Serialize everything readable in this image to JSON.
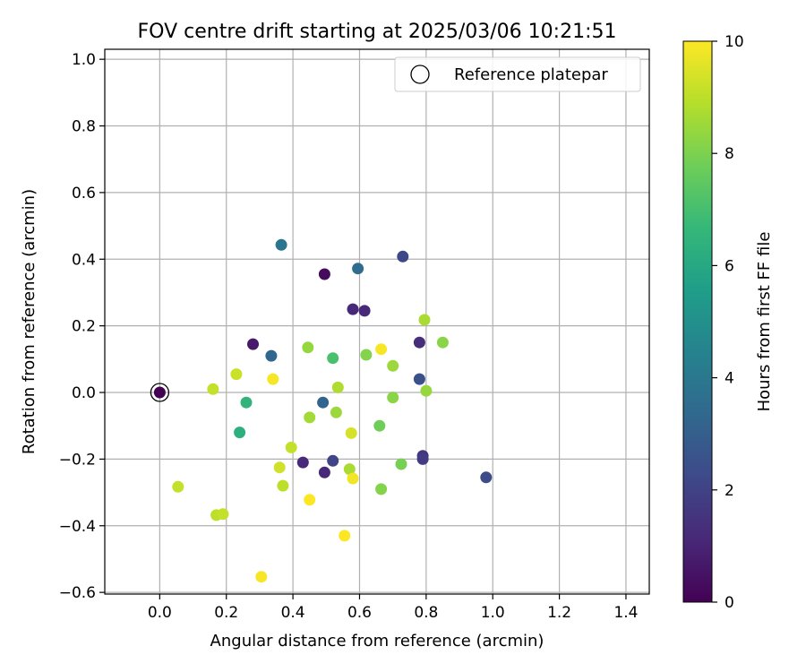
{
  "chart_data": {
    "type": "scatter",
    "title": "FOV centre drift starting at 2025/03/06 10:21:51",
    "xlabel": "Angular distance from reference (arcmin)",
    "ylabel": "Rotation from reference (arcmin)",
    "xlim": [
      -0.165,
      1.47
    ],
    "ylim": [
      -0.605,
      1.03
    ],
    "xticks": [
      0.0,
      0.2,
      0.4,
      0.6,
      0.8,
      1.0,
      1.2,
      1.4
    ],
    "xtick_labels": [
      "0.0",
      "0.2",
      "0.4",
      "0.6",
      "0.8",
      "1.0",
      "1.2",
      "1.4"
    ],
    "yticks": [
      -0.6,
      -0.4,
      -0.2,
      0.0,
      0.2,
      0.4,
      0.6,
      0.8,
      1.0
    ],
    "ytick_labels": [
      "−0.6",
      "−0.4",
      "−0.2",
      "0.0",
      "0.2",
      "0.4",
      "0.6",
      "0.8",
      "1.0"
    ],
    "grid": true,
    "legend": {
      "placement": "upper-right",
      "entries": [
        "Reference platepar"
      ]
    },
    "reference_point": {
      "x": 0.0,
      "y": 0.0
    },
    "colorbar": {
      "label": "Hours from first FF file",
      "range": [
        0,
        10
      ],
      "ticks": [
        0,
        2,
        4,
        6,
        8,
        10
      ],
      "tick_labels": [
        "0",
        "2",
        "4",
        "6",
        "8",
        "10"
      ],
      "colormap": "viridis",
      "stops": [
        "#440154",
        "#482878",
        "#3e4989",
        "#31688e",
        "#26828e",
        "#1f9e89",
        "#35b779",
        "#6ece58",
        "#b5de2b",
        "#fde725"
      ]
    },
    "points": [
      {
        "x": 0.0,
        "y": 0.0,
        "t": 0.0
      },
      {
        "x": 0.28,
        "y": 0.145,
        "t": 0.7
      },
      {
        "x": 0.335,
        "y": 0.11,
        "t": 3.3
      },
      {
        "x": 0.365,
        "y": 0.443,
        "t": 3.9
      },
      {
        "x": 0.495,
        "y": 0.355,
        "t": 0.3
      },
      {
        "x": 0.595,
        "y": 0.372,
        "t": 3.5
      },
      {
        "x": 0.73,
        "y": 0.408,
        "t": 2.2
      },
      {
        "x": 0.58,
        "y": 0.25,
        "t": 1.1
      },
      {
        "x": 0.615,
        "y": 0.245,
        "t": 1.1
      },
      {
        "x": 0.78,
        "y": 0.15,
        "t": 1.3
      },
      {
        "x": 0.78,
        "y": 0.04,
        "t": 2.5
      },
      {
        "x": 0.79,
        "y": -0.19,
        "t": 1.6
      },
      {
        "x": 0.79,
        "y": -0.2,
        "t": 1.8
      },
      {
        "x": 0.98,
        "y": -0.255,
        "t": 2.3
      },
      {
        "x": 0.49,
        "y": -0.03,
        "t": 3.2
      },
      {
        "x": 0.43,
        "y": -0.21,
        "t": 1.2
      },
      {
        "x": 0.495,
        "y": -0.24,
        "t": 1.1
      },
      {
        "x": 0.52,
        "y": -0.205,
        "t": 2.1
      },
      {
        "x": 0.26,
        "y": -0.03,
        "t": 6.5
      },
      {
        "x": 0.24,
        "y": -0.12,
        "t": 6.3
      },
      {
        "x": 0.445,
        "y": 0.135,
        "t": 8.4
      },
      {
        "x": 0.52,
        "y": 0.103,
        "t": 7.1
      },
      {
        "x": 0.62,
        "y": 0.113,
        "t": 8.1
      },
      {
        "x": 0.535,
        "y": 0.015,
        "t": 8.8
      },
      {
        "x": 0.53,
        "y": -0.06,
        "t": 8.5
      },
      {
        "x": 0.45,
        "y": -0.075,
        "t": 8.6
      },
      {
        "x": 0.7,
        "y": 0.08,
        "t": 8.5
      },
      {
        "x": 0.7,
        "y": -0.015,
        "t": 8.2
      },
      {
        "x": 0.795,
        "y": 0.218,
        "t": 8.7
      },
      {
        "x": 0.85,
        "y": 0.15,
        "t": 8.2
      },
      {
        "x": 0.8,
        "y": 0.005,
        "t": 8.4
      },
      {
        "x": 0.66,
        "y": -0.1,
        "t": 7.8
      },
      {
        "x": 0.725,
        "y": -0.215,
        "t": 7.9
      },
      {
        "x": 0.665,
        "y": -0.29,
        "t": 8.1
      },
      {
        "x": 0.57,
        "y": -0.23,
        "t": 8.7
      },
      {
        "x": 0.665,
        "y": 0.13,
        "t": 9.9
      },
      {
        "x": 0.34,
        "y": 0.04,
        "t": 9.9
      },
      {
        "x": 0.23,
        "y": 0.055,
        "t": 9.2
      },
      {
        "x": 0.16,
        "y": 0.01,
        "t": 9.1
      },
      {
        "x": 0.395,
        "y": -0.165,
        "t": 9.1
      },
      {
        "x": 0.36,
        "y": -0.225,
        "t": 9.3
      },
      {
        "x": 0.37,
        "y": -0.28,
        "t": 9.0
      },
      {
        "x": 0.575,
        "y": -0.122,
        "t": 9.4
      },
      {
        "x": 0.58,
        "y": -0.258,
        "t": 9.8
      },
      {
        "x": 0.45,
        "y": -0.322,
        "t": 10.0
      },
      {
        "x": 0.555,
        "y": -0.43,
        "t": 10.0
      },
      {
        "x": 0.305,
        "y": -0.553,
        "t": 9.9
      },
      {
        "x": 0.055,
        "y": -0.283,
        "t": 9.1
      },
      {
        "x": 0.17,
        "y": -0.368,
        "t": 9.0
      },
      {
        "x": 0.19,
        "y": -0.365,
        "t": 9.1
      }
    ]
  }
}
